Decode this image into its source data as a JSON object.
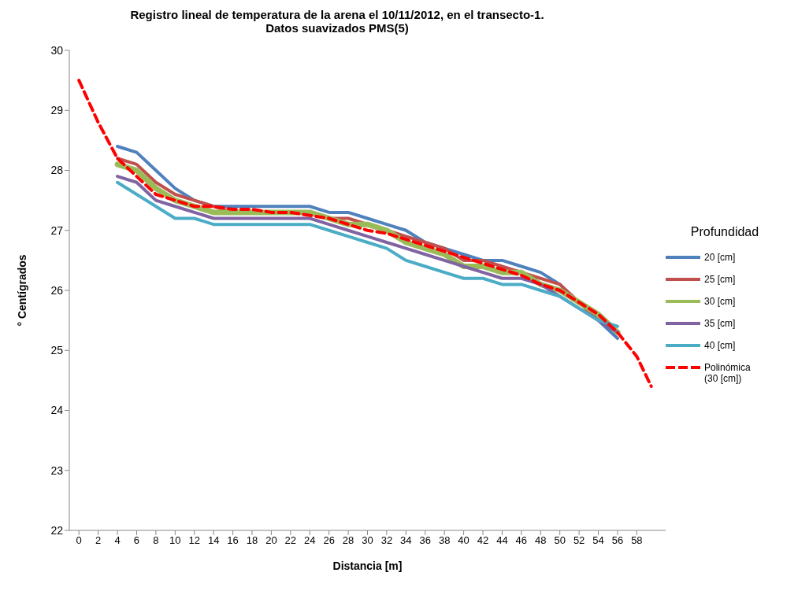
{
  "chart_data": {
    "type": "line",
    "title": "Registro lineal de temperatura de la arena el 10/11/2012,  en el transecto-1.",
    "subtitle": "Datos suavizados PMS(5)",
    "xlabel": "Distancia [m]",
    "ylabel": "° Centígrados",
    "legend_title": "Profundidad",
    "legend": "right",
    "x": [
      4,
      6,
      8,
      10,
      12,
      14,
      16,
      18,
      20,
      22,
      24,
      26,
      28,
      30,
      32,
      34,
      36,
      38,
      40,
      42,
      44,
      46,
      48,
      50,
      52,
      54,
      56
    ],
    "xlim": [
      -1,
      61
    ],
    "xticks": [
      0,
      2,
      4,
      6,
      8,
      10,
      12,
      14,
      16,
      18,
      20,
      22,
      24,
      26,
      28,
      30,
      32,
      34,
      36,
      38,
      40,
      42,
      44,
      46,
      48,
      50,
      52,
      54,
      56,
      58
    ],
    "ylim": [
      22,
      30
    ],
    "yticks": [
      22,
      23,
      24,
      25,
      26,
      27,
      28,
      29,
      30
    ],
    "series": [
      {
        "name": "20 [cm]",
        "color": "#4f81bd",
        "values": [
          28.4,
          28.3,
          28.0,
          27.7,
          27.5,
          27.4,
          27.4,
          27.4,
          27.4,
          27.4,
          27.4,
          27.3,
          27.3,
          27.2,
          27.1,
          27.0,
          26.8,
          26.7,
          26.6,
          26.5,
          26.5,
          26.4,
          26.3,
          26.1,
          25.8,
          25.5,
          25.2
        ]
      },
      {
        "name": "25 [cm]",
        "color": "#c0504d",
        "values": [
          28.2,
          28.1,
          27.8,
          27.6,
          27.5,
          27.4,
          27.3,
          27.3,
          27.3,
          27.3,
          27.3,
          27.2,
          27.2,
          27.1,
          27.0,
          26.9,
          26.8,
          26.7,
          26.5,
          26.5,
          26.4,
          26.3,
          26.2,
          26.1,
          25.8,
          25.5,
          25.3
        ]
      },
      {
        "name": "30 [cm]",
        "color": "#9bbb59",
        "values": [
          28.1,
          28.0,
          27.7,
          27.5,
          27.4,
          27.3,
          27.3,
          27.3,
          27.3,
          27.3,
          27.3,
          27.2,
          27.1,
          27.1,
          27.0,
          26.8,
          26.7,
          26.6,
          26.4,
          26.4,
          26.3,
          26.3,
          26.1,
          26.0,
          25.8,
          25.6,
          25.3
        ]
      },
      {
        "name": "35 [cm]",
        "color": "#8064a2",
        "values": [
          27.9,
          27.8,
          27.5,
          27.4,
          27.3,
          27.2,
          27.2,
          27.2,
          27.2,
          27.2,
          27.2,
          27.1,
          27.0,
          26.9,
          26.8,
          26.7,
          26.6,
          26.5,
          26.4,
          26.3,
          26.2,
          26.2,
          26.1,
          25.9,
          25.7,
          25.5,
          25.3
        ]
      },
      {
        "name": "40 [cm]",
        "color": "#4bacc6",
        "values": [
          27.8,
          27.6,
          27.4,
          27.2,
          27.2,
          27.1,
          27.1,
          27.1,
          27.1,
          27.1,
          27.1,
          27.0,
          26.9,
          26.8,
          26.7,
          26.5,
          26.4,
          26.3,
          26.2,
          26.2,
          26.1,
          26.1,
          26.0,
          25.9,
          25.7,
          25.5,
          25.4
        ]
      },
      {
        "name": "Polinómica (30 [cm])",
        "color": "#ff0000",
        "line_style": "dashed",
        "x": [
          0,
          2,
          4,
          6,
          8,
          10,
          12,
          14,
          16,
          18,
          20,
          22,
          24,
          26,
          28,
          30,
          32,
          34,
          36,
          38,
          40,
          42,
          44,
          46,
          48,
          50,
          52,
          54,
          56,
          58,
          59.5
        ],
        "values": [
          29.5,
          28.8,
          28.2,
          27.9,
          27.6,
          27.5,
          27.4,
          27.4,
          27.35,
          27.35,
          27.3,
          27.3,
          27.25,
          27.2,
          27.1,
          27.0,
          26.95,
          26.85,
          26.75,
          26.65,
          26.55,
          26.45,
          26.35,
          26.25,
          26.1,
          26.0,
          25.8,
          25.6,
          25.3,
          24.9,
          24.4
        ]
      }
    ]
  }
}
